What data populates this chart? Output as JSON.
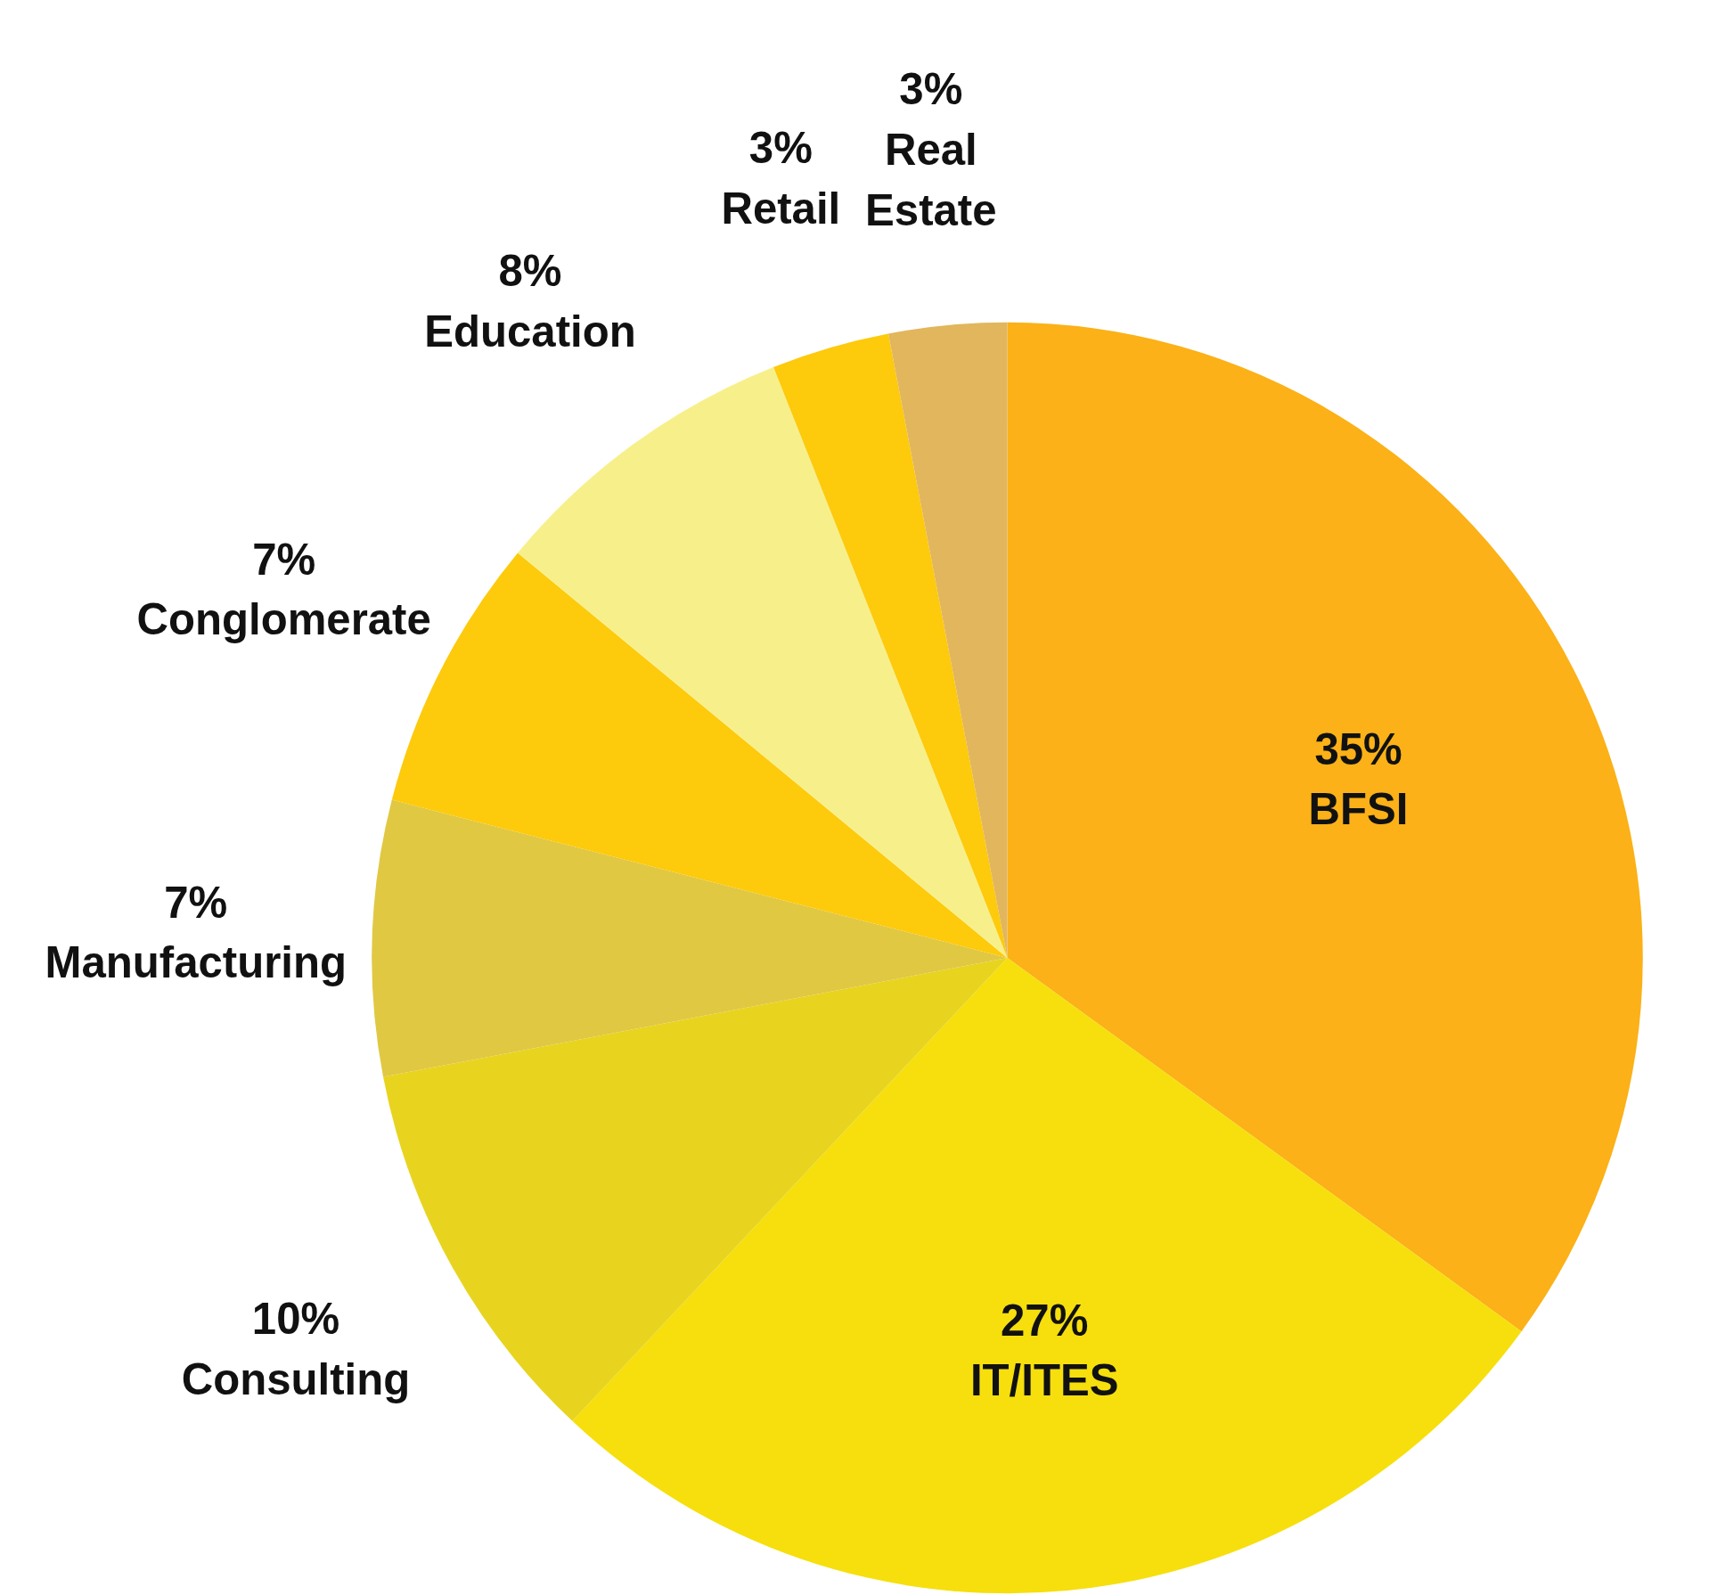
{
  "chart_data": {
    "type": "pie",
    "categories": [
      "BFSI",
      "IT/ITES",
      "Consulting",
      "Manufacturing",
      "Conglomerate",
      "Education",
      "Retail",
      "Real Estate"
    ],
    "values": [
      35,
      27,
      10,
      7,
      7,
      8,
      3,
      3
    ],
    "value_labels": [
      "35%",
      "27%",
      "10%",
      "7%",
      "7%",
      "8%",
      "3%",
      "3%"
    ],
    "colors": [
      "#fbb117",
      "#f6df0c",
      "#e8d41f",
      "#e0c842",
      "#fdca0c",
      "#f7f08a",
      "#fdca0c",
      "#e2b65c"
    ]
  }
}
